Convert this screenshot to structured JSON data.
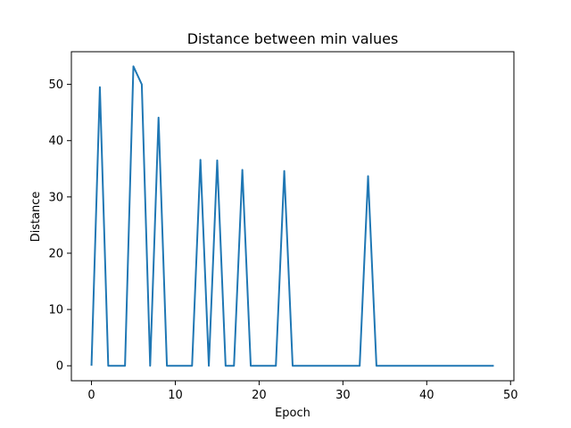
{
  "chart_data": {
    "type": "line",
    "title": "Distance between min values",
    "xlabel": "Epoch",
    "ylabel": "Distance",
    "xlim": [
      -2.4,
      50.4
    ],
    "ylim": [
      -2.66,
      55.8
    ],
    "xticks": [
      0,
      10,
      20,
      30,
      40,
      50
    ],
    "yticks": [
      0,
      10,
      20,
      30,
      40,
      50
    ],
    "grid": false,
    "series": [
      {
        "color": "#1f77b4",
        "x": [
          0,
          1,
          2,
          3,
          4,
          5,
          6,
          7,
          8,
          9,
          10,
          11,
          12,
          13,
          14,
          15,
          16,
          17,
          18,
          19,
          20,
          21,
          22,
          23,
          24,
          25,
          26,
          27,
          28,
          29,
          30,
          31,
          32,
          33,
          34,
          35,
          36,
          37,
          38,
          39,
          40,
          41,
          42,
          43,
          44,
          45,
          46,
          47,
          48
        ],
        "y": [
          0,
          49.5,
          0,
          0,
          0,
          53.2,
          50.0,
          0,
          44.1,
          0,
          0,
          0,
          0,
          36.6,
          0,
          36.5,
          0,
          0,
          34.8,
          0,
          0,
          0,
          0,
          34.6,
          0,
          0,
          0,
          0,
          0,
          0,
          0,
          0,
          0,
          33.7,
          0,
          0,
          0,
          0,
          0,
          0,
          0,
          0,
          0,
          0,
          0,
          0,
          0,
          0,
          0
        ]
      }
    ]
  }
}
